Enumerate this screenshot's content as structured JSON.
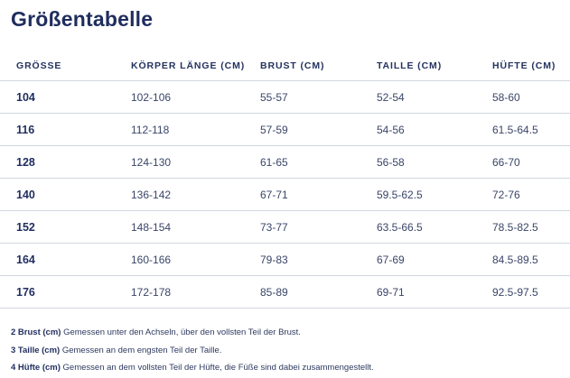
{
  "title": "Größentabelle",
  "table": {
    "headers": [
      "GRÖSSE",
      "KÖRPER LÄNGE (CM)",
      "BRUST (CM)",
      "TAILLE (CM)",
      "HÜFTE (CM)"
    ],
    "rows": [
      [
        "104",
        "102-106",
        "55-57",
        "52-54",
        "58-60"
      ],
      [
        "116",
        "112-118",
        "57-59",
        "54-56",
        "61.5-64.5"
      ],
      [
        "128",
        "124-130",
        "61-65",
        "56-58",
        "66-70"
      ],
      [
        "140",
        "136-142",
        "67-71",
        "59.5-62.5",
        "72-76"
      ],
      [
        "152",
        "148-154",
        "73-77",
        "63.5-66.5",
        "78.5-82.5"
      ],
      [
        "164",
        "160-166",
        "79-83",
        "67-69",
        "84.5-89.5"
      ],
      [
        "176",
        "172-178",
        "85-89",
        "69-71",
        "92.5-97.5"
      ]
    ]
  },
  "notes": [
    {
      "label": "2 Brust (cm)",
      "text": " Gemessen unter den Achseln, über den vollsten Teil der Brust."
    },
    {
      "label": "3 Taille (cm)",
      "text": " Gemessen an dem engsten Teil der Taille."
    },
    {
      "label": "4 Hüfte (cm)",
      "text": " Gemessen an dem vollsten Teil der Hüfte, die Füße sind dabei zusammengestellt."
    }
  ]
}
